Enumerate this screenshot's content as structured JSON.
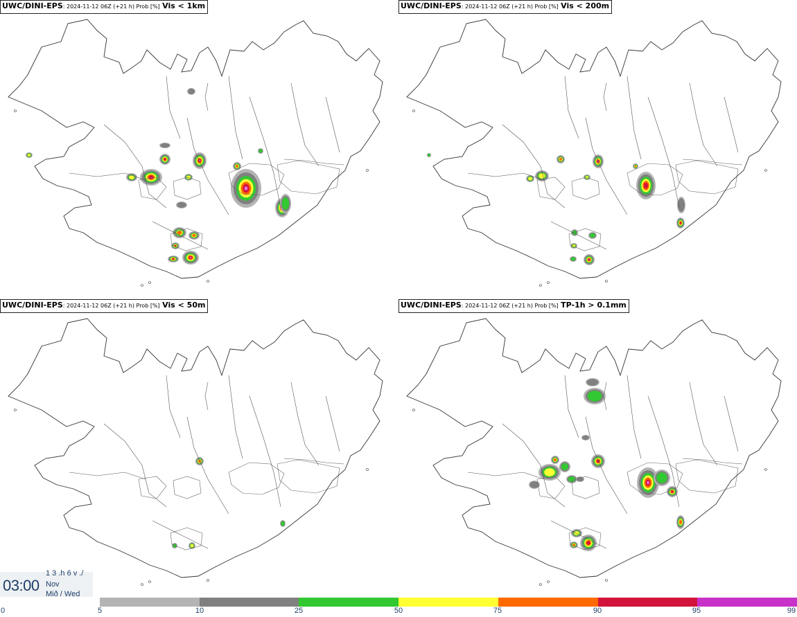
{
  "panels": [
    {
      "source": "UWC/DINI-EPS",
      "meta": ": 2024-11-12 06Z (+21 h) Prob [%]",
      "variable": "Vis < 1km"
    },
    {
      "source": "UWC/DINI-EPS",
      "meta": ": 2024-11-12 06Z (+21 h) Prob [%]",
      "variable": "Vis < 200m"
    },
    {
      "source": "UWC/DINI-EPS",
      "meta": ": 2024-11-12 06Z (+21 h) Prob [%]",
      "variable": "Vis < 50m"
    },
    {
      "source": "UWC/DINI-EPS",
      "meta": ": 2024-11-12 06Z (+21 h) Prob [%]",
      "variable": "TP-1h > 0.1mm"
    }
  ],
  "clock": {
    "time": "03:00",
    "line1": "1 3 .h 6 v ./",
    "line2": "Nov",
    "line3": "Mið / Wed"
  },
  "legend": {
    "ticks": [
      "0",
      "5",
      "10",
      "25",
      "50",
      "75",
      "90",
      "95",
      "99"
    ],
    "colors": [
      "#b4b4b4",
      "#808080",
      "#32c832",
      "#ffff32",
      "#ff6a00",
      "#d2143c",
      "#c832c8",
      "#f5b4f5"
    ]
  },
  "palette": {
    "levels": [
      5,
      10,
      25,
      50,
      75,
      90,
      95
    ],
    "colors": [
      "#b4b4b4",
      "#808080",
      "#32c832",
      "#ffff32",
      "#ff6a00",
      "#d2143c",
      "#e873e8"
    ]
  }
}
